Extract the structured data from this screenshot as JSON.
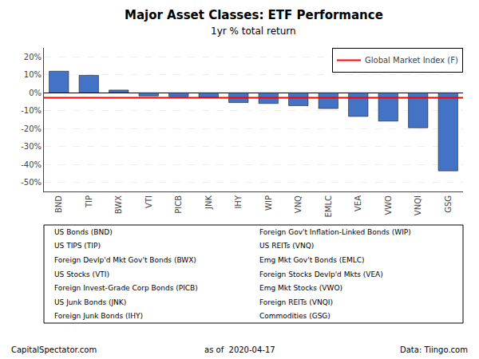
{
  "chart_data": {
    "type": "bar",
    "title": "Major Asset Classes: ETF Performance",
    "subtitle": "1yr % total return",
    "categories": [
      "BND",
      "TIP",
      "BWX",
      "VTI",
      "PICB",
      "JNK",
      "IHY",
      "WIP",
      "VNQ",
      "EMLC",
      "VEA",
      "VWO",
      "VNQI",
      "GSG"
    ],
    "values": [
      12.0,
      9.7,
      1.5,
      -1.8,
      -2.2,
      -2.5,
      -5.5,
      -6.0,
      -7.2,
      -8.8,
      -13.2,
      -15.8,
      -19.5,
      -43.5
    ],
    "color": "#4472C4",
    "reference_line": {
      "name": "Global Market Index (F)",
      "value": -2.8,
      "color": "#FF0000"
    },
    "ylim": [
      -55,
      25
    ],
    "yticks": [
      {
        "value": -50,
        "label": "-50%"
      },
      {
        "value": -40,
        "label": "-40%"
      },
      {
        "value": -30,
        "label": "-30%"
      },
      {
        "value": -20,
        "label": "-20%"
      },
      {
        "value": -10,
        "label": "-10%"
      },
      {
        "value": 0,
        "label": "0%"
      },
      {
        "value": 10,
        "label": "10%"
      },
      {
        "value": 20,
        "label": "20%"
      }
    ],
    "grid": true,
    "legend": "upper right",
    "legend_items": {
      "left": [
        "US Bonds (BND)",
        "US TIPS (TIP)",
        "Foreign Devlp'd Mkt Gov't Bonds (BWX)",
        "US Stocks (VTI)",
        "Foreign Invest-Grade Corp Bonds (PICB)",
        "US Junk Bonds (JNK)",
        "Foreign Junk Bonds (IHY)"
      ],
      "right": [
        "Foreign Gov't Inflation-Linked Bonds (WIP)",
        "US REITs (VNQ)",
        "Emg Mkt Gov't Bonds (EMLC)",
        "Foreign Stocks Devlp'd Mkts (VEA)",
        "Emg Mkt Stocks (VWO)",
        "Foreign REITs (VNQI)",
        "Commodities (GSG)"
      ]
    },
    "footer": {
      "left": "CapitalSpectator.com",
      "center": "as of  2020-04-17",
      "right": "Data: Tiingo.com"
    }
  }
}
